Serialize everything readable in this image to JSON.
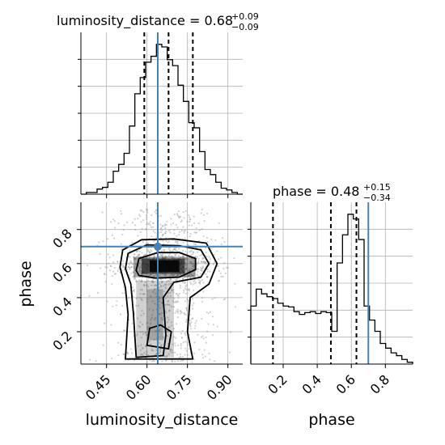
{
  "chart_data": {
    "type": "corner",
    "parameters": [
      "luminosity_distance",
      "phase"
    ],
    "truths": {
      "luminosity_distance": 0.64,
      "phase": 0.7
    },
    "titles": {
      "luminosity_distance": {
        "prefix": "luminosity_distance = 0.68",
        "plus": "+0.09",
        "minus": "−0.09"
      },
      "phase": {
        "prefix": "phase = 0.48",
        "plus": "+0.15",
        "minus": "−0.34"
      }
    },
    "axis_labels": {
      "x_left": "luminosity_distance",
      "x_right": "phase",
      "y_lower": "phase"
    },
    "ranges": {
      "luminosity_distance": [
        0.355,
        0.955
      ],
      "phase": [
        0.01,
        0.96
      ]
    },
    "ticks": {
      "luminosity_distance": {
        "values": [
          0.45,
          0.6,
          0.75,
          0.9
        ],
        "labels": [
          "0.45",
          "0.60",
          "0.75",
          "0.90"
        ]
      },
      "phase": {
        "values": [
          0.2,
          0.4,
          0.6,
          0.8
        ],
        "labels": [
          "0.2",
          "0.4",
          "0.6",
          "0.8"
        ]
      }
    },
    "quantiles": {
      "luminosity_distance": [
        0.59,
        0.68,
        0.77
      ],
      "phase": [
        0.14,
        0.48,
        0.63
      ]
    },
    "hist_luminosity_distance": {
      "edges": [
        0.355,
        0.375,
        0.395,
        0.415,
        0.435,
        0.455,
        0.475,
        0.495,
        0.515,
        0.535,
        0.555,
        0.575,
        0.595,
        0.615,
        0.635,
        0.655,
        0.675,
        0.695,
        0.715,
        0.735,
        0.755,
        0.775,
        0.795,
        0.815,
        0.835,
        0.855,
        0.875,
        0.895,
        0.915,
        0.935,
        0.955
      ],
      "counts": [
        0,
        2,
        2,
        6,
        8,
        14,
        27,
        35,
        48,
        80,
        118,
        137,
        155,
        162,
        176,
        173,
        158,
        151,
        128,
        109,
        84,
        78,
        50,
        29,
        23,
        14,
        7,
        5,
        2,
        0
      ]
    },
    "hist_phase": {
      "edges": [
        0.01,
        0.0417,
        0.0733,
        0.105,
        0.1367,
        0.1683,
        0.2,
        0.2317,
        0.2633,
        0.295,
        0.3267,
        0.3583,
        0.39,
        0.4217,
        0.4533,
        0.485,
        0.5167,
        0.5483,
        0.58,
        0.6117,
        0.6433,
        0.675,
        0.7067,
        0.7383,
        0.77,
        0.8017,
        0.8333,
        0.865,
        0.8967,
        0.9283,
        0.96
      ],
      "counts": [
        62,
        80,
        75,
        72,
        70,
        65,
        62,
        61,
        56,
        53,
        55,
        56,
        54,
        56,
        55,
        35,
        108,
        138,
        160,
        155,
        133,
        62,
        47,
        35,
        22,
        17,
        12,
        9,
        5,
        2
      ]
    }
  }
}
